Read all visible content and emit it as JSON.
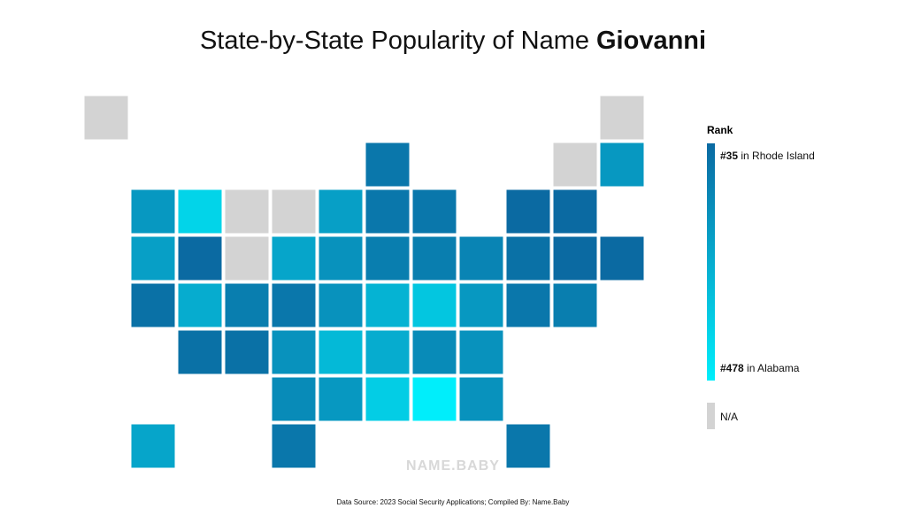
{
  "title": {
    "text": "State-by-State Popularity of Name",
    "name": "Giovanni"
  },
  "legend": {
    "heading": "Rank",
    "top": {
      "rank": "#35",
      "label": "in Rhode Island"
    },
    "bottom": {
      "rank": "#478",
      "label": "in Alabama"
    },
    "na": "N/A",
    "colors": {
      "top": "#0b6aa2",
      "bottom": "#00eefb",
      "na": "#d3d3d3"
    }
  },
  "watermark": "NAME.BABY",
  "source": "Data Source: 2023 Social Security Applications; Compiled By: Name.Baby"
}
